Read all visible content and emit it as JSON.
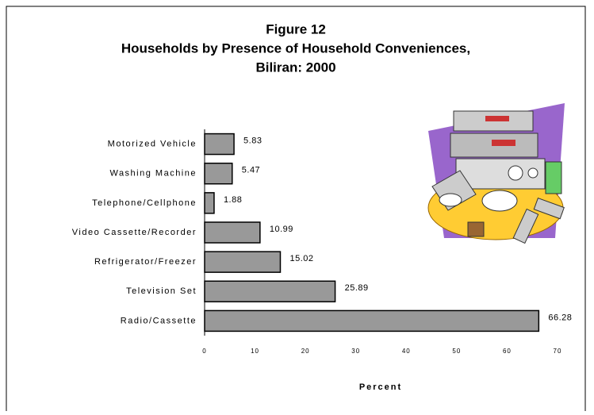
{
  "chart_data": {
    "type": "bar",
    "orientation": "horizontal",
    "title": [
      "Figure 12",
      "Households by Presence of Household Conveniences,",
      "Biliran: 2000"
    ],
    "categories": [
      "Motorized Vehicle",
      "Washing Machine",
      "Telephone/Cellphone",
      "Video Cassette/Recorder",
      "Refrigerator/Freezer",
      "Television Set",
      "Radio/Cassette"
    ],
    "values": [
      5.83,
      5.47,
      1.88,
      10.99,
      15.02,
      25.89,
      66.28
    ],
    "color": "#999999",
    "xlim": [
      0,
      70
    ],
    "xticks": [
      0,
      10,
      20,
      30,
      40,
      50,
      60,
      70
    ],
    "xlabel": "Percent",
    "grid": false
  }
}
